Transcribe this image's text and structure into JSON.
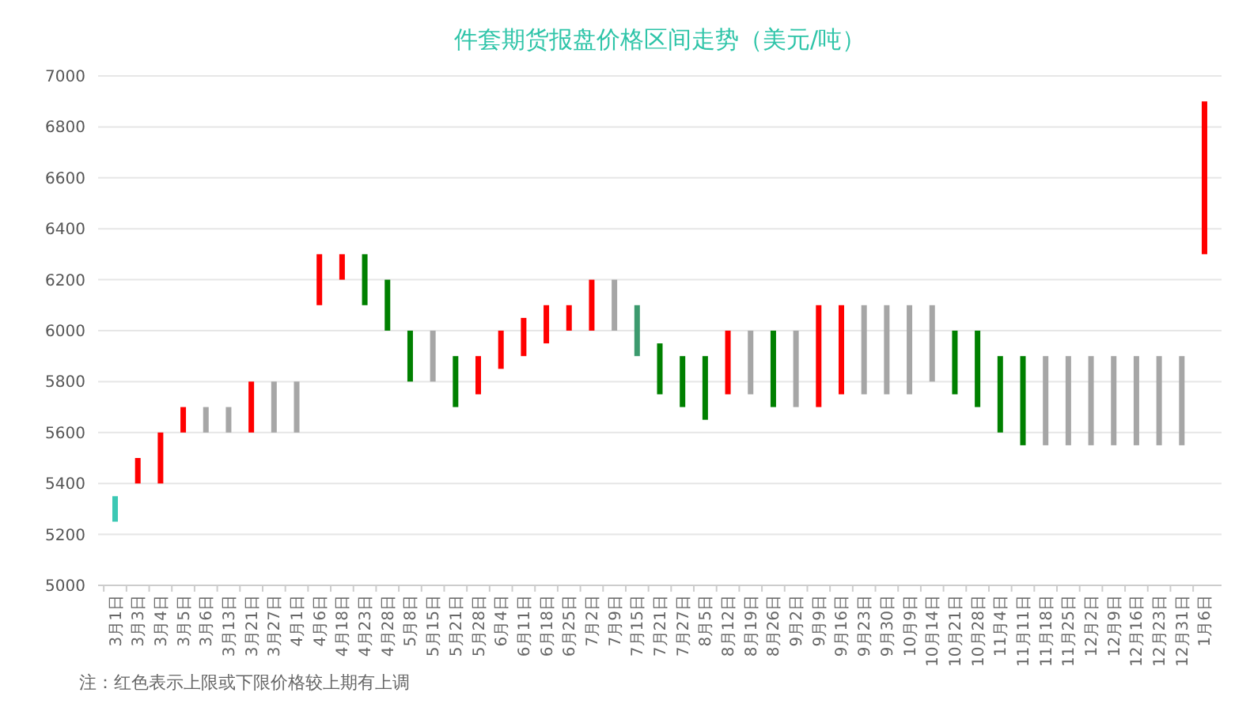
{
  "chart_data": {
    "type": "bar",
    "title": "件套期货报盘价格区间走势（美元/吨）",
    "categories": [
      "3月1日",
      "3月3日",
      "3月4日",
      "3月5日",
      "3月6日",
      "3月13日",
      "3月21日",
      "3月27日",
      "4月1日",
      "4月6日",
      "4月18日",
      "4月23日",
      "4月28日",
      "5月8日",
      "5月15日",
      "5月21日",
      "5月28日",
      "6月4日",
      "6月11日",
      "6月18日",
      "6月25日",
      "7月2日",
      "7月9日",
      "7月15日",
      "7月21日",
      "7月27日",
      "8月5日",
      "8月12日",
      "8月19日",
      "8月26日",
      "9月2日",
      "9月9日",
      "9月16日",
      "9月23日",
      "9月30日",
      "10月9日",
      "10月14日",
      "10月21日",
      "10月28日",
      "11月4日",
      "11月11日",
      "11月18日",
      "11月25日",
      "12月2日",
      "12月9日",
      "12月16日",
      "12月23日",
      "12月31日",
      "1月6日"
    ],
    "base": [
      5250,
      5400,
      5400,
      5600,
      5600,
      5600,
      5600,
      5600,
      5600,
      6100,
      6200,
      6100,
      6000,
      5800,
      5800,
      5700,
      5750,
      5850,
      5900,
      5950,
      6000,
      6000,
      6000,
      5900,
      5750,
      5700,
      5650,
      5750,
      5750,
      5700,
      5700,
      5700,
      5750,
      5750,
      5750,
      5750,
      5800,
      5750,
      5700,
      5600,
      5550,
      5550,
      5550,
      5550,
      5550,
      5550,
      5550,
      5550,
      6300
    ],
    "values": [
      100,
      100,
      200,
      100,
      100,
      100,
      200,
      200,
      200,
      200,
      100,
      200,
      200,
      200,
      200,
      200,
      150,
      150,
      150,
      150,
      100,
      200,
      200,
      200,
      200,
      200,
      250,
      250,
      250,
      300,
      300,
      400,
      350,
      350,
      350,
      350,
      300,
      250,
      300,
      300,
      350,
      350,
      350,
      350,
      350,
      350,
      350,
      350,
      600
    ],
    "colors": [
      "#3cc8b4",
      "#ff0000",
      "#ff0000",
      "#ff0000",
      "#a6a6a6",
      "#a6a6a6",
      "#ff0000",
      "#a6a6a6",
      "#a6a6a6",
      "#ff0000",
      "#ff0000",
      "#008000",
      "#008000",
      "#008000",
      "#a6a6a6",
      "#008000",
      "#ff0000",
      "#ff0000",
      "#ff0000",
      "#ff0000",
      "#ff0000",
      "#ff0000",
      "#a6a6a6",
      "#3c9a6e",
      "#008000",
      "#008000",
      "#008000",
      "#ff0000",
      "#a6a6a6",
      "#008000",
      "#a6a6a6",
      "#ff0000",
      "#ff0000",
      "#a6a6a6",
      "#a6a6a6",
      "#a6a6a6",
      "#a6a6a6",
      "#008000",
      "#008000",
      "#008000",
      "#008000",
      "#a6a6a6",
      "#a6a6a6",
      "#a6a6a6",
      "#a6a6a6",
      "#a6a6a6",
      "#a6a6a6",
      "#a6a6a6",
      "#ff0000"
    ],
    "ylim": [
      5000,
      7000
    ],
    "yticks": [
      5000,
      5200,
      5400,
      5600,
      5800,
      6000,
      6200,
      6400,
      6600,
      6800,
      7000
    ],
    "grid": "y",
    "annotations": [
      "注：红色表示上限或下限价格较上期有上调"
    ]
  }
}
